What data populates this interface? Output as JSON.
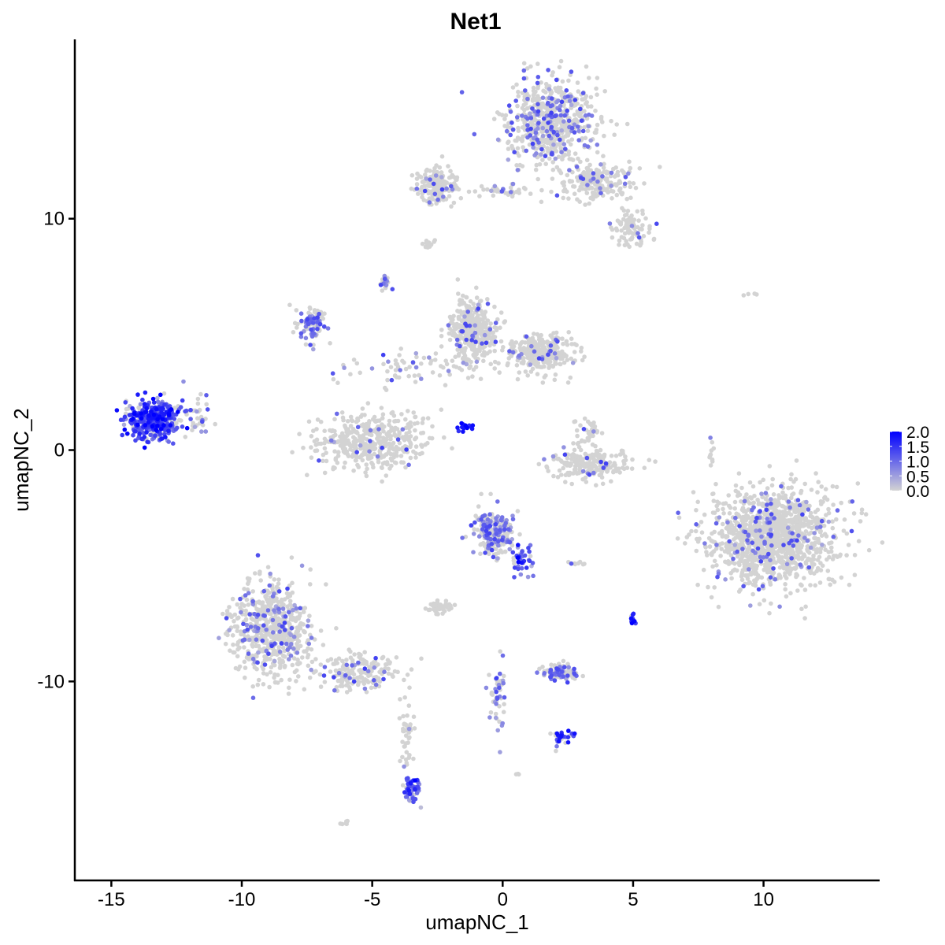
{
  "chart_data": {
    "type": "scatter",
    "title": "Net1",
    "xlabel": "umapNC_1",
    "ylabel": "umapNC_2",
    "xlim": [
      -16.4,
      14.45
    ],
    "ylim": [
      -18.6,
      17.75
    ],
    "xticks": [
      -15,
      -10,
      -5,
      0,
      5,
      10
    ],
    "yticks": [
      -10,
      0,
      10
    ],
    "grid": false,
    "legend": {
      "placement": "right",
      "type": "colorbar",
      "min": 0,
      "max": 2.0,
      "ticks": [
        "0.0",
        "0.5",
        "1.0",
        "1.5",
        "2.0"
      ],
      "low_color": "#D3D3D3",
      "high_color": "#0000FF"
    },
    "clusters": [
      {
        "cx": 1.9,
        "cy": 14.2,
        "sx": 1.1,
        "sy": 1.2,
        "n": 650,
        "expr": 0.3
      },
      {
        "cx": 3.7,
        "cy": 11.6,
        "sx": 1.0,
        "sy": 0.6,
        "n": 200,
        "expr": 0.2
      },
      {
        "cx": 5.0,
        "cy": 9.6,
        "sx": 0.5,
        "sy": 0.5,
        "n": 90,
        "expr": 0.1
      },
      {
        "cx": -2.5,
        "cy": 11.4,
        "sx": 0.5,
        "sy": 0.45,
        "n": 180,
        "expr": 0.2
      },
      {
        "cx": 0.0,
        "cy": 11.2,
        "sx": 0.8,
        "sy": 0.15,
        "n": 40,
        "expr": 0.3
      },
      {
        "cx": -13.4,
        "cy": 1.3,
        "sx": 0.7,
        "sy": 0.55,
        "n": 420,
        "expr": 1.3
      },
      {
        "cx": -11.8,
        "cy": 1.5,
        "sx": 0.4,
        "sy": 0.6,
        "n": 40,
        "expr": 0.7
      },
      {
        "cx": -1.2,
        "cy": 5.2,
        "sx": 0.6,
        "sy": 0.8,
        "n": 380,
        "expr": 0.15
      },
      {
        "cx": 1.4,
        "cy": 4.2,
        "sx": 0.9,
        "sy": 0.5,
        "n": 320,
        "expr": 0.1
      },
      {
        "cx": -3.0,
        "cy": 3.6,
        "sx": 1.8,
        "sy": 0.4,
        "n": 80,
        "expr": 0.3
      },
      {
        "cx": -7.3,
        "cy": 5.4,
        "sx": 0.35,
        "sy": 0.5,
        "n": 100,
        "expr": 0.7
      },
      {
        "cx": -5.0,
        "cy": 0.4,
        "sx": 1.4,
        "sy": 0.8,
        "n": 420,
        "expr": 0.1
      },
      {
        "cx": 3.4,
        "cy": -0.6,
        "sx": 1.0,
        "sy": 0.4,
        "n": 220,
        "expr": 0.1
      },
      {
        "cx": 3.2,
        "cy": 0.8,
        "sx": 0.3,
        "sy": 0.4,
        "n": 40,
        "expr": 0.05
      },
      {
        "cx": 10.4,
        "cy": -3.8,
        "sx": 1.6,
        "sy": 1.35,
        "n": 1300,
        "expr": 0.15
      },
      {
        "cx": -0.3,
        "cy": -3.6,
        "sx": 0.5,
        "sy": 0.6,
        "n": 250,
        "expr": 0.6
      },
      {
        "cx": 0.8,
        "cy": -4.8,
        "sx": 0.3,
        "sy": 0.5,
        "n": 40,
        "expr": 1.1
      },
      {
        "cx": -8.9,
        "cy": -7.7,
        "sx": 1.0,
        "sy": 1.3,
        "n": 620,
        "expr": 0.25
      },
      {
        "cx": -5.5,
        "cy": -9.6,
        "sx": 1.1,
        "sy": 0.5,
        "n": 180,
        "expr": 0.2
      },
      {
        "cx": -3.7,
        "cy": -12.4,
        "sx": 0.2,
        "sy": 1.2,
        "n": 40,
        "expr": 0.2
      },
      {
        "cx": -3.5,
        "cy": -14.6,
        "sx": 0.2,
        "sy": 0.45,
        "n": 60,
        "expr": 1.1
      },
      {
        "cx": 2.2,
        "cy": -9.6,
        "sx": 0.5,
        "sy": 0.25,
        "n": 90,
        "expr": 0.7
      },
      {
        "cx": 2.3,
        "cy": -12.4,
        "sx": 0.25,
        "sy": 0.25,
        "n": 30,
        "expr": 1.6
      },
      {
        "cx": -0.2,
        "cy": -11.0,
        "sx": 0.2,
        "sy": 1.0,
        "n": 50,
        "expr": 0.7
      },
      {
        "cx": 5.0,
        "cy": -7.3,
        "sx": 0.08,
        "sy": 0.2,
        "n": 10,
        "expr": 1.7
      },
      {
        "cx": -2.4,
        "cy": -6.8,
        "sx": 0.3,
        "sy": 0.2,
        "n": 40,
        "expr": 0.0
      },
      {
        "cx": -4.5,
        "cy": 7.3,
        "sx": 0.15,
        "sy": 0.25,
        "n": 25,
        "expr": 0.8
      },
      {
        "cx": -1.5,
        "cy": 1.0,
        "sx": 0.25,
        "sy": 0.15,
        "n": 15,
        "expr": 1.8
      },
      {
        "cx": -2.8,
        "cy": 8.9,
        "sx": 0.15,
        "sy": 0.1,
        "n": 15,
        "expr": 0.0
      },
      {
        "cx": 8.0,
        "cy": 0.0,
        "sx": 0.1,
        "sy": 0.4,
        "n": 10,
        "expr": 0.3
      },
      {
        "cx": 2.7,
        "cy": -4.9,
        "sx": 0.2,
        "sy": 0.06,
        "n": 8,
        "expr": 0.2
      },
      {
        "cx": -6.0,
        "cy": -16.1,
        "sx": 0.1,
        "sy": 0.08,
        "n": 6,
        "expr": 0.0
      },
      {
        "cx": 9.5,
        "cy": 6.7,
        "sx": 0.2,
        "sy": 0.05,
        "n": 4,
        "expr": 0.0
      },
      {
        "cx": 0.6,
        "cy": -14.0,
        "sx": 0.08,
        "sy": 0.08,
        "n": 3,
        "expr": 0.3
      }
    ]
  }
}
